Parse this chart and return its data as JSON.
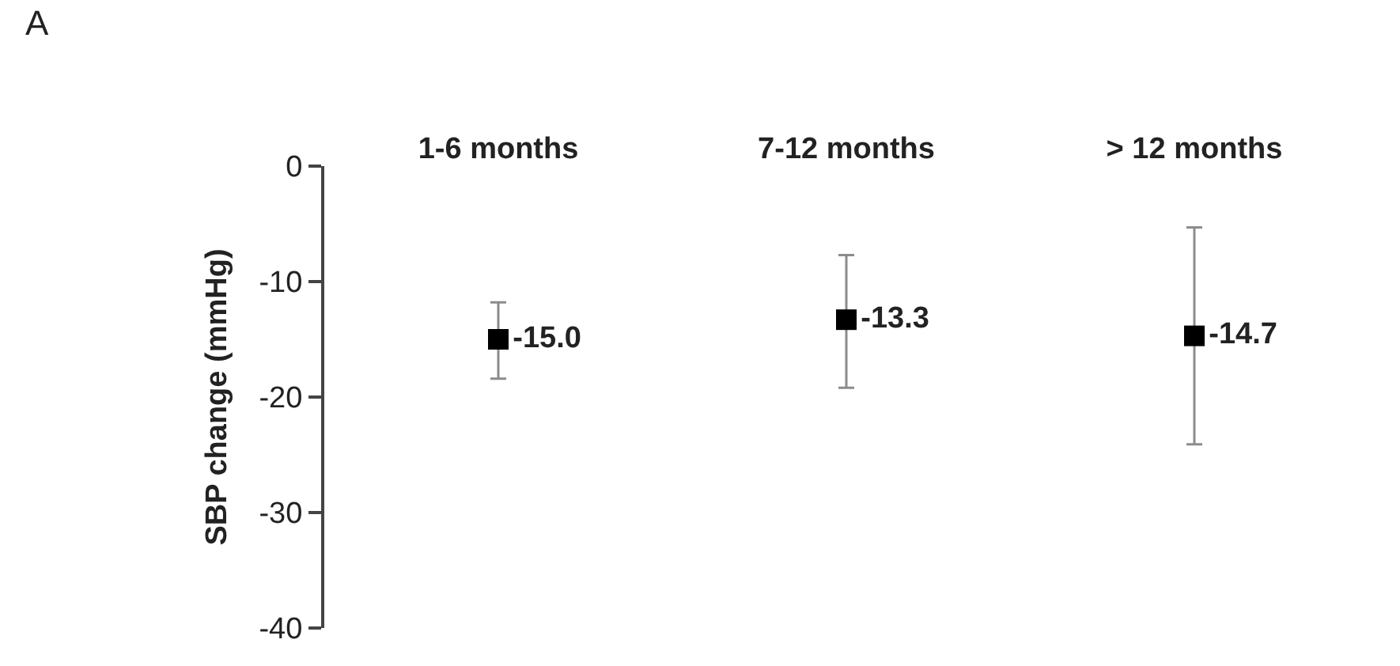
{
  "chart_data": {
    "type": "scatter",
    "categories": [
      "1-6 months",
      "7-12 months",
      "> 12 months"
    ],
    "series": [
      {
        "color": "#000000",
        "values": [
          -15.0,
          -13.3,
          -14.7
        ],
        "errors": [
          [
            -18.4,
            -11.8
          ],
          [
            -19.2,
            -7.7
          ],
          [
            -24.1,
            -5.3
          ]
        ],
        "value_labels": [
          "-15.0",
          "-13.3",
          "-14.7"
        ]
      }
    ],
    "ylabel": "SBP change (mmHg)",
    "ylim": [
      -40,
      0
    ],
    "yticks": [
      0,
      -10,
      -20,
      -30,
      -40
    ],
    "annotations": [
      "A"
    ],
    "marker": "square"
  }
}
